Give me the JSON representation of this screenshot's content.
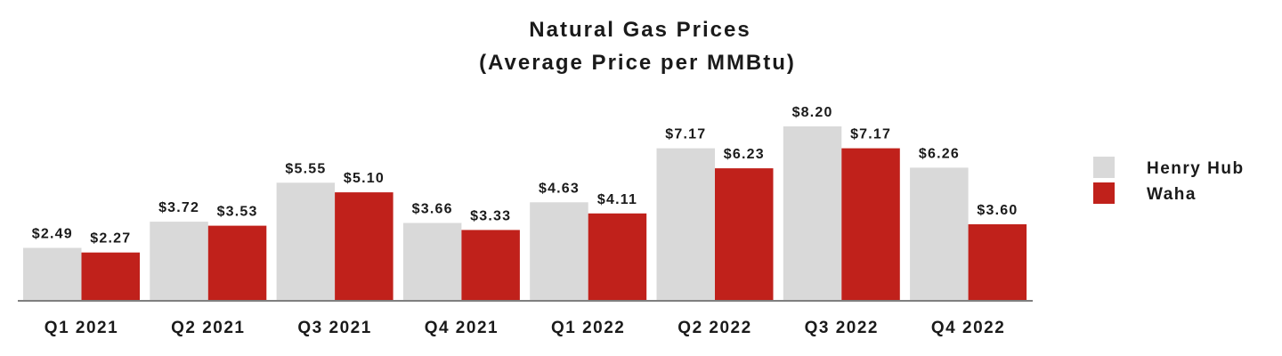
{
  "chart_data": {
    "type": "bar",
    "title": "Natural Gas Prices",
    "subtitle": "(Average Price per MMBtu)",
    "categories": [
      "Q1 2021",
      "Q2 2021",
      "Q3 2021",
      "Q4 2021",
      "Q1 2022",
      "Q2 2022",
      "Q3 2022",
      "Q4 2022"
    ],
    "series": [
      {
        "name": "Henry Hub",
        "color": "#d9d9d9",
        "values": [
          2.49,
          3.72,
          5.55,
          3.66,
          4.63,
          7.17,
          8.2,
          6.26
        ],
        "labels": [
          "$2.49",
          "$3.72",
          "$5.55",
          "$3.66",
          "$4.63",
          "$7.17",
          "$8.20",
          "$6.26"
        ]
      },
      {
        "name": "Waha",
        "color": "#c0211b",
        "values": [
          2.27,
          3.53,
          5.1,
          3.33,
          4.11,
          6.23,
          7.17,
          3.6
        ],
        "labels": [
          "$2.27",
          "$3.53",
          "$5.10",
          "$3.33",
          "$4.11",
          "$6.23",
          "$7.17",
          "$3.60"
        ]
      }
    ],
    "ylim": [
      0,
      8.2
    ],
    "xlabel": "",
    "ylabel": "",
    "grid": false,
    "legend_position": "right"
  }
}
